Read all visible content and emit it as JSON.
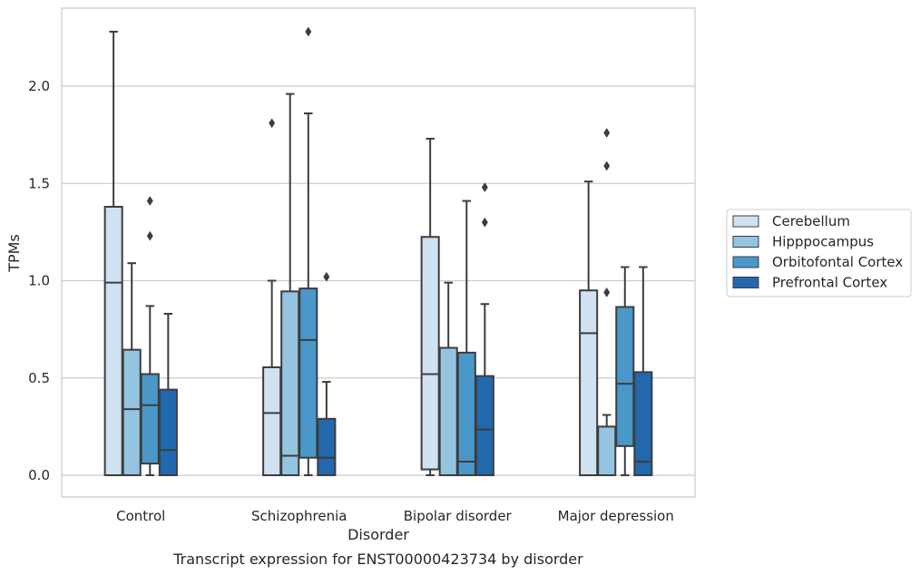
{
  "chart_data": {
    "type": "box",
    "title": "",
    "caption": "Transcript expression for ENST00000423734 by disorder",
    "xlabel": "Disorder",
    "ylabel": "TPMs",
    "ylim": [
      -0.11,
      2.4
    ],
    "yticks": [
      "0.0",
      "0.5",
      "1.0",
      "1.5",
      "2.0"
    ],
    "ytick_values": [
      0.0,
      0.5,
      1.0,
      1.5,
      2.0
    ],
    "grid": "horizontal",
    "legend_position": "right",
    "categories": [
      "Control",
      "Schizophrenia",
      "Bipolar disorder",
      "Major depression"
    ],
    "series": [
      {
        "name": "Cerebellum",
        "color": "#d0e1f2",
        "boxes": [
          {
            "whislo": 0.0,
            "q1": 0.0,
            "med": 0.99,
            "q3": 1.38,
            "whishi": 2.28,
            "fliers": []
          },
          {
            "whislo": 0.0,
            "q1": 0.0,
            "med": 0.32,
            "q3": 0.555,
            "whishi": 1.0,
            "fliers": [
              1.81
            ]
          },
          {
            "whislo": 0.0,
            "q1": 0.03,
            "med": 0.52,
            "q3": 1.225,
            "whishi": 1.73,
            "fliers": []
          },
          {
            "whislo": 0.0,
            "q1": 0.0,
            "med": 0.73,
            "q3": 0.95,
            "whishi": 1.51,
            "fliers": []
          }
        ]
      },
      {
        "name": "Hipppocampus",
        "color": "#94c4df",
        "boxes": [
          {
            "whislo": 0.0,
            "q1": 0.0,
            "med": 0.34,
            "q3": 0.645,
            "whishi": 1.09,
            "fliers": []
          },
          {
            "whislo": 0.0,
            "q1": 0.0,
            "med": 0.1,
            "q3": 0.945,
            "whishi": 1.96,
            "fliers": []
          },
          {
            "whislo": 0.0,
            "q1": 0.0,
            "med": 0.0,
            "q3": 0.655,
            "whishi": 0.99,
            "fliers": []
          },
          {
            "whislo": 0.0,
            "q1": 0.0,
            "med": 0.0,
            "q3": 0.25,
            "whishi": 0.31,
            "fliers": [
              0.94,
              1.59,
              1.76
            ]
          }
        ]
      },
      {
        "name": "Orbitofontal Cortex",
        "color": "#4a98c9",
        "boxes": [
          {
            "whislo": 0.0,
            "q1": 0.06,
            "med": 0.36,
            "q3": 0.52,
            "whishi": 0.87,
            "fliers": [
              1.23,
              1.41
            ]
          },
          {
            "whislo": 0.0,
            "q1": 0.09,
            "med": 0.695,
            "q3": 0.96,
            "whishi": 1.86,
            "fliers": [
              2.28
            ]
          },
          {
            "whislo": 0.0,
            "q1": 0.0,
            "med": 0.07,
            "q3": 0.63,
            "whishi": 1.41,
            "fliers": []
          },
          {
            "whislo": 0.0,
            "q1": 0.15,
            "med": 0.47,
            "q3": 0.865,
            "whishi": 1.07,
            "fliers": []
          }
        ]
      },
      {
        "name": "Prefrontal Cortex",
        "color": "#2268ad",
        "boxes": [
          {
            "whislo": 0.0,
            "q1": 0.0,
            "med": 0.13,
            "q3": 0.44,
            "whishi": 0.83,
            "fliers": []
          },
          {
            "whislo": 0.0,
            "q1": 0.0,
            "med": 0.09,
            "q3": 0.29,
            "whishi": 0.48,
            "fliers": [
              1.02
            ]
          },
          {
            "whislo": 0.0,
            "q1": 0.0,
            "med": 0.235,
            "q3": 0.51,
            "whishi": 0.88,
            "fliers": [
              1.3,
              1.48
            ]
          },
          {
            "whislo": 0.0,
            "q1": 0.0,
            "med": 0.07,
            "q3": 0.53,
            "whishi": 1.07,
            "fliers": []
          }
        ]
      }
    ]
  }
}
